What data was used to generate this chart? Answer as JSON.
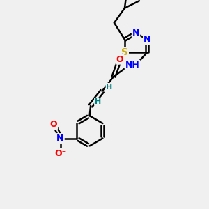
{
  "bg_color": "#f0f0f0",
  "bond_color": "#000000",
  "bond_width": 1.8,
  "atom_colors": {
    "N": "#0000ff",
    "O": "#ff0000",
    "S": "#ccaa00",
    "H": "#008080"
  },
  "font_size": 9
}
